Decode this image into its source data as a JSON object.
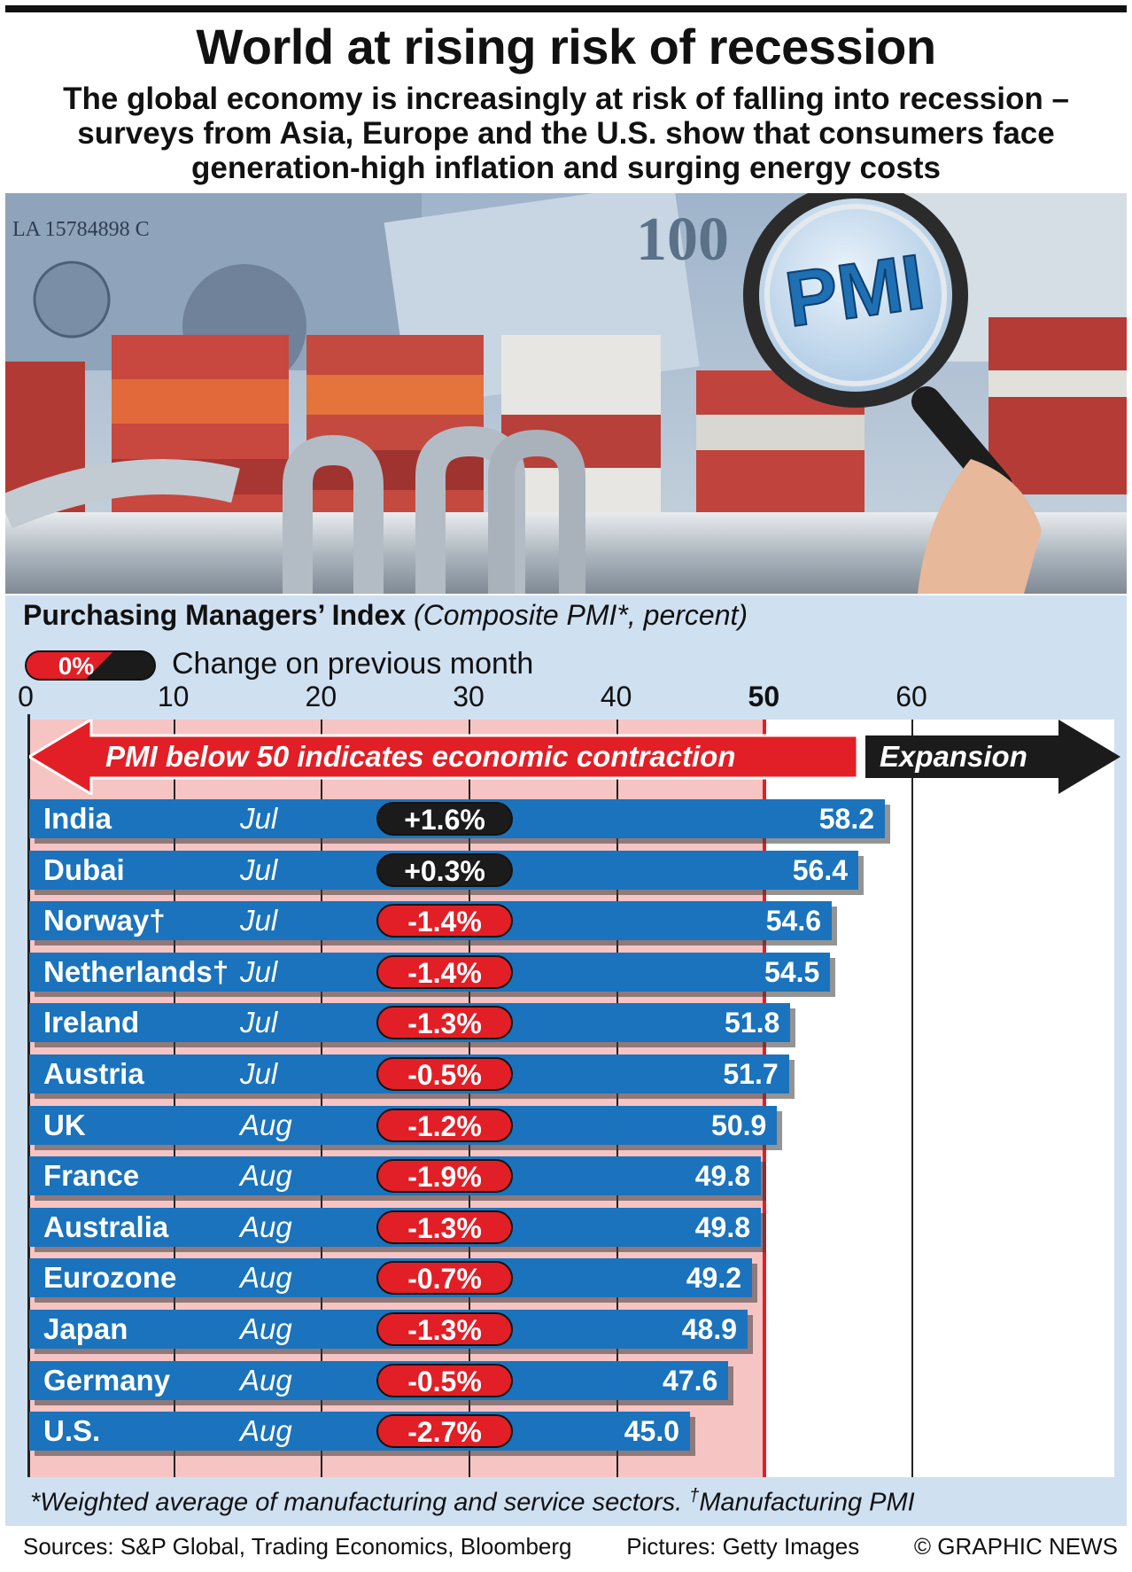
{
  "header": {
    "title": "World at rising risk of recession",
    "subtitle": "The global economy is increasingly at risk of falling into recession – surveys from Asia, Europe and the U.S. show that consumers face generation-high inflation and surging energy costs"
  },
  "photo": {
    "pmi_text": "PMI",
    "banknote_100": "100",
    "banknote_serial": "LA 15784898 C"
  },
  "chart_data": {
    "type": "bar",
    "orientation": "horizontal",
    "title": "Purchasing Managers’ Index",
    "subtitle": "(Composite PMI*, percent)",
    "legend": {
      "pill_text": "0%",
      "label": "Change on previous month"
    },
    "xlim": [
      0,
      60
    ],
    "x_ticks": [
      "0",
      "10",
      "20",
      "30",
      "40",
      "50",
      "60"
    ],
    "threshold": 50,
    "contraction_label": "PMI below 50 indicates economic contraction",
    "expansion_label": "Expansion",
    "rows": [
      {
        "country": "India",
        "month": "Jul",
        "change": "+1.6%",
        "value": 58.2,
        "value_label": "58.2"
      },
      {
        "country": "Dubai",
        "month": "Jul",
        "change": "+0.3%",
        "value": 56.4,
        "value_label": "56.4"
      },
      {
        "country": "Norway†",
        "month": "Jul",
        "change": "-1.4%",
        "value": 54.6,
        "value_label": "54.6"
      },
      {
        "country": "Netherlands†",
        "month": "Jul",
        "change": "-1.4%",
        "value": 54.5,
        "value_label": "54.5"
      },
      {
        "country": "Ireland",
        "month": "Jul",
        "change": "-1.3%",
        "value": 51.8,
        "value_label": "51.8"
      },
      {
        "country": "Austria",
        "month": "Jul",
        "change": "-0.5%",
        "value": 51.7,
        "value_label": "51.7"
      },
      {
        "country": "UK",
        "month": "Aug",
        "change": "-1.2%",
        "value": 50.9,
        "value_label": "50.9"
      },
      {
        "country": "France",
        "month": "Aug",
        "change": "-1.9%",
        "value": 49.8,
        "value_label": "49.8"
      },
      {
        "country": "Australia",
        "month": "Aug",
        "change": "-1.3%",
        "value": 49.8,
        "value_label": "49.8"
      },
      {
        "country": "Eurozone",
        "month": "Aug",
        "change": "-0.7%",
        "value": 49.2,
        "value_label": "49.2"
      },
      {
        "country": "Japan",
        "month": "Aug",
        "change": "-1.3%",
        "value": 48.9,
        "value_label": "48.9"
      },
      {
        "country": "Germany",
        "month": "Aug",
        "change": "-0.5%",
        "value": 47.6,
        "value_label": "47.6"
      },
      {
        "country": "U.S.",
        "month": "Aug",
        "change": "-2.7%",
        "value": 45.0,
        "value_label": "45.0"
      }
    ],
    "colors": {
      "bar": "#1a73bc",
      "negative": "#e21f26",
      "positive": "#1b1b1b",
      "contraction_zone": "#f7c4c4",
      "background": "#cfe0f1"
    }
  },
  "footer": {
    "footnote_main": "*Weighted average of manufacturing and service sectors.",
    "footnote_dagger_mark": "†",
    "footnote_dagger_text": "Manufacturing PMI",
    "sources": "Sources: S&P Global, Trading Economics, Bloomberg",
    "pictures": "Pictures: Getty Images",
    "credit": "© GRAPHIC NEWS"
  }
}
